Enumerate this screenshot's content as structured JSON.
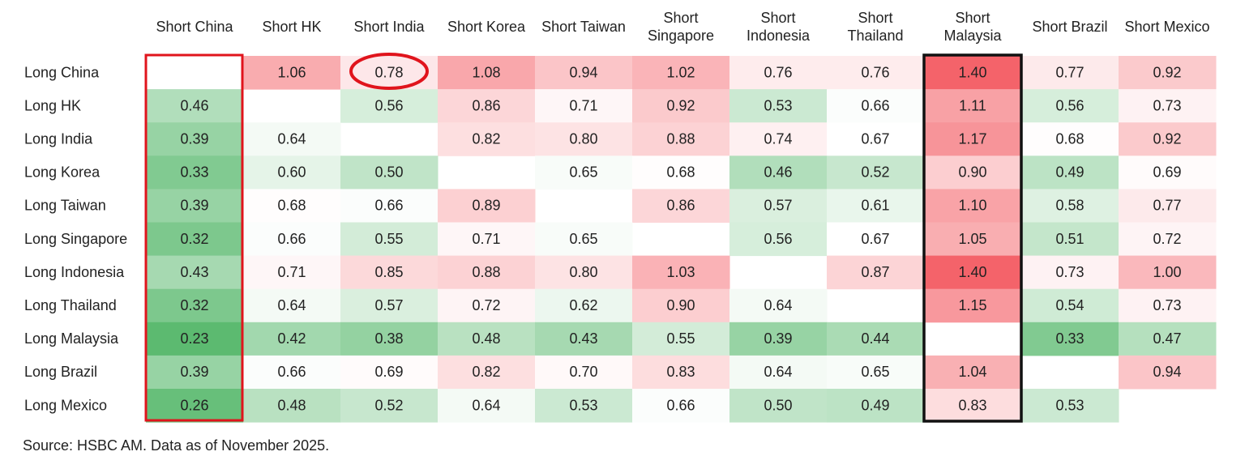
{
  "chart_data": {
    "type": "heatmap",
    "x_categories": [
      "Short China",
      "Short HK",
      "Short India",
      "Short Korea",
      "Short Taiwan",
      "Short Singapore",
      "Short Indonesia",
      "Short Thailand",
      "Short Malaysia",
      "Short Brazil",
      "Short Mexico"
    ],
    "y_categories": [
      "Long China",
      "Long HK",
      "Long India",
      "Long Korea",
      "Long Taiwan",
      "Long Singapore",
      "Long Indonesia",
      "Long Thailand",
      "Long Malaysia",
      "Long Brazil",
      "Long Mexico"
    ],
    "values": [
      [
        null,
        1.06,
        0.78,
        1.08,
        0.94,
        1.02,
        0.76,
        0.76,
        1.4,
        0.77,
        0.92
      ],
      [
        0.46,
        null,
        0.56,
        0.86,
        0.71,
        0.92,
        0.53,
        0.66,
        1.11,
        0.56,
        0.73
      ],
      [
        0.39,
        0.64,
        null,
        0.82,
        0.8,
        0.88,
        0.74,
        0.67,
        1.17,
        0.68,
        0.92
      ],
      [
        0.33,
        0.6,
        0.5,
        null,
        0.65,
        0.68,
        0.46,
        0.52,
        0.9,
        0.49,
        0.69
      ],
      [
        0.39,
        0.68,
        0.66,
        0.89,
        null,
        0.86,
        0.57,
        0.61,
        1.1,
        0.58,
        0.77
      ],
      [
        0.32,
        0.66,
        0.55,
        0.71,
        0.65,
        null,
        0.56,
        0.67,
        1.05,
        0.51,
        0.72
      ],
      [
        0.43,
        0.71,
        0.85,
        0.88,
        0.8,
        1.03,
        null,
        0.87,
        1.4,
        0.73,
        1.0
      ],
      [
        0.32,
        0.64,
        0.57,
        0.72,
        0.62,
        0.9,
        0.64,
        null,
        1.15,
        0.54,
        0.73
      ],
      [
        0.23,
        0.42,
        0.38,
        0.48,
        0.43,
        0.55,
        0.39,
        0.44,
        null,
        0.33,
        0.47
      ],
      [
        0.39,
        0.66,
        0.69,
        0.82,
        0.7,
        0.83,
        0.64,
        0.65,
        1.04,
        null,
        0.94
      ],
      [
        0.26,
        0.48,
        0.52,
        0.64,
        0.53,
        0.66,
        0.5,
        0.49,
        0.83,
        0.53,
        null
      ]
    ],
    "value_labels": [
      [
        null,
        "1.06",
        "0.78",
        "1.08",
        "0.94",
        "1.02",
        "0.76",
        "0.76",
        "1.40",
        "0.77",
        "0.92"
      ],
      [
        "0.46",
        null,
        "0.56",
        "0.86",
        "0.71",
        "0.92",
        "0.53",
        "0.66",
        "1.11",
        "0.56",
        "0.73"
      ],
      [
        "0.39",
        "0.64",
        null,
        "0.82",
        "0.80",
        "0.88",
        "0.74",
        "0.67",
        "1.17",
        "0.68",
        "0.92"
      ],
      [
        "0.33",
        "0.60",
        "0.50",
        null,
        "0.65",
        "0.68",
        "0.46",
        "0.52",
        "0.90",
        "0.49",
        "0.69"
      ],
      [
        "0.39",
        "0.68",
        "0.66",
        "0.89",
        null,
        "0.86",
        "0.57",
        "0.61",
        "1.10",
        "0.58",
        "0.77"
      ],
      [
        "0.32",
        "0.66",
        "0.55",
        "0.71",
        "0.65",
        null,
        "0.56",
        "0.67",
        "1.05",
        "0.51",
        "0.72"
      ],
      [
        "0.43",
        "0.71",
        "0.85",
        "0.88",
        "0.80",
        "1.03",
        null,
        "0.87",
        "1.40",
        "0.73",
        "1.00"
      ],
      [
        "0.32",
        "0.64",
        "0.57",
        "0.72",
        "0.62",
        "0.90",
        "0.64",
        null,
        "1.15",
        "0.54",
        "0.73"
      ],
      [
        "0.23",
        "0.42",
        "0.38",
        "0.48",
        "0.43",
        "0.55",
        "0.39",
        "0.44",
        null,
        "0.33",
        "0.47"
      ],
      [
        "0.39",
        "0.66",
        "0.69",
        "0.82",
        "0.70",
        "0.83",
        "0.64",
        "0.65",
        "1.04",
        null,
        "0.94"
      ],
      [
        "0.26",
        "0.48",
        "0.52",
        "0.64",
        "0.53",
        "0.66",
        "0.50",
        "0.49",
        "0.83",
        "0.53",
        null
      ]
    ],
    "colors": [
      "#5cba70",
      "#ffffff",
      "#f4636a"
    ],
    "source": "Source: HSBC AM. Data as of November 2025."
  }
}
